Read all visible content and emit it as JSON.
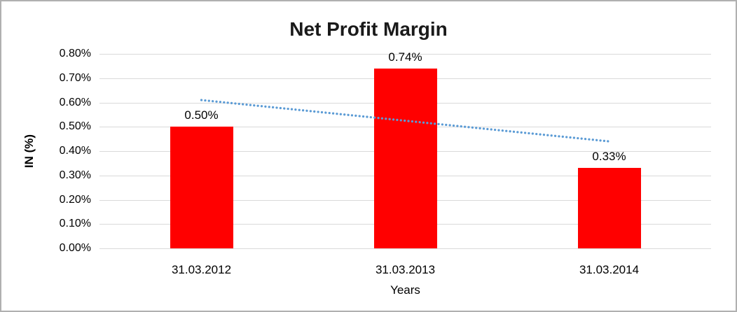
{
  "chart_data": {
    "type": "bar",
    "title": "Net Profit Margin",
    "xlabel": "Years",
    "ylabel": "IN (%)",
    "categories": [
      "31.03.2012",
      "31.03.2013",
      "31.03.2014"
    ],
    "values": [
      0.5,
      0.74,
      0.33
    ],
    "value_labels": [
      "0.50%",
      "0.74%",
      "0.33%"
    ],
    "yticks": [
      "0.80%",
      "0.70%",
      "0.60%",
      "0.50%",
      "0.40%",
      "0.30%",
      "0.20%",
      "0.10%",
      "0.00%"
    ],
    "ylim": [
      0,
      0.8
    ],
    "grid": "horizontal",
    "legend": "none",
    "bar_color": "#ff0000",
    "gridline_color": "#d9d9d9",
    "frame_border_color": "#b0b0b0",
    "trendline": {
      "style": "dotted",
      "color": "#5b9bd5",
      "start_value": 0.61,
      "end_value": 0.44
    }
  }
}
